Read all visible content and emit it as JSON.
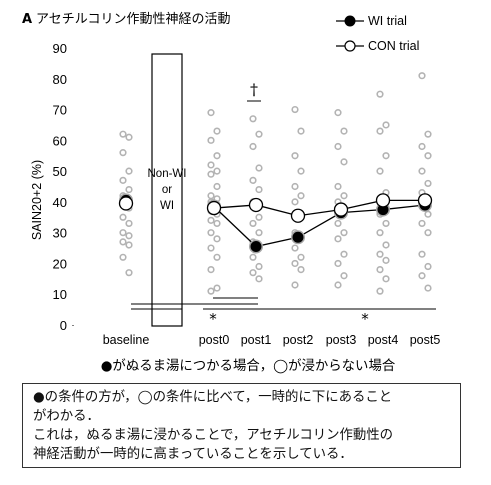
{
  "chart_data": {
    "type": "line",
    "title": "アセチルコリン作動性神経の活動",
    "panel_label": "A",
    "ylabel": "SAIN20+2 (%)",
    "ylim": [
      0,
      90
    ],
    "yticks": [
      0,
      10,
      20,
      30,
      40,
      50,
      60,
      70,
      80,
      90
    ],
    "grid": false,
    "legend_position": "top-right",
    "categories": [
      "baseline",
      "post0",
      "post1",
      "post2",
      "post3",
      "post4",
      "post5"
    ],
    "series": [
      {
        "name": "WI trial",
        "marker": "filled",
        "values": [
          40.5,
          38.5,
          25.5,
          28.5,
          36.5,
          37.5,
          39
        ]
      },
      {
        "name": "CON trial",
        "marker": "open",
        "values": [
          39.5,
          38,
          39,
          35.5,
          37.5,
          40.5,
          40.5
        ]
      }
    ],
    "individual_points": [
      [
        62,
        61,
        56,
        50,
        47,
        44,
        42,
        41,
        40,
        38,
        35,
        33,
        30,
        29,
        27,
        26,
        22,
        17
      ],
      [
        69,
        63,
        60,
        55,
        52,
        50,
        49,
        45,
        42,
        41,
        40,
        39,
        37,
        36,
        34,
        33,
        30,
        28,
        25,
        22,
        18,
        12,
        11
      ],
      [
        67,
        62,
        58,
        51,
        47,
        44,
        40,
        35,
        33,
        30,
        27,
        25,
        22,
        19,
        17,
        15
      ],
      [
        70,
        63,
        55,
        50,
        45,
        42,
        40,
        35,
        30,
        28,
        25,
        22,
        20,
        18,
        13
      ],
      [
        69,
        63,
        58,
        53,
        45,
        42,
        40,
        36,
        33,
        30,
        28,
        23,
        20,
        16,
        13
      ],
      [
        75,
        65,
        63,
        55,
        50,
        43,
        40,
        38,
        36,
        33,
        30,
        26,
        23,
        21,
        18,
        15,
        11
      ],
      [
        81,
        62,
        58,
        55,
        50,
        46,
        43,
        41,
        39,
        36,
        33,
        30,
        23,
        19,
        16,
        12
      ]
    ],
    "box_label": "Non-WI\nor\nWI",
    "annotations": {
      "dagger": "†",
      "star": "*"
    }
  },
  "lower_legend": "●がぬるま湯につかる場合，◯が浸からない場合",
  "note": {
    "lines": [
      "●の条件の方が，◯の条件に比べて，一時的に下にあること",
      "がわかる．",
      "これは，ぬるま湯に浸かることで，アセチルコリン作動性の",
      "神経活動が一時的に高まっていることを示している．"
    ]
  }
}
